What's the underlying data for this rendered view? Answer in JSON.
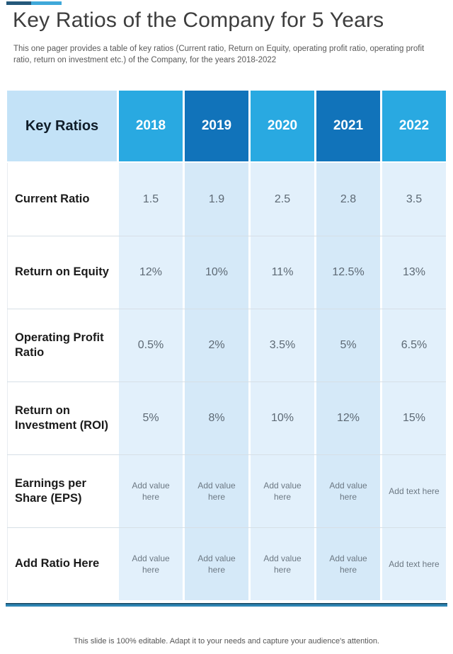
{
  "slide": {
    "title": "Key Ratios of the Company for 5 Years",
    "subtitle": "This one pager provides a table of key ratios (Current ratio, Return on Equity, operating profit ratio, operating profit ratio, return on investment etc.) of the Company, for the years 2018-2022",
    "footer_note": "This slide is 100% editable. Adapt it to your needs and capture your audience's attention."
  },
  "table": {
    "corner_label": "Key Ratios",
    "years": [
      "2018",
      "2019",
      "2020",
      "2021",
      "2022"
    ],
    "rows": [
      {
        "label": "Current Ratio",
        "values": [
          "1.5",
          "1.9",
          "2.5",
          "2.8",
          "3.5"
        ]
      },
      {
        "label": "Return on Equity",
        "values": [
          "12%",
          "10%",
          "11%",
          "12.5%",
          "13%"
        ]
      },
      {
        "label": "Operating Profit Ratio",
        "values": [
          "0.5%",
          "2%",
          "3.5%",
          "5%",
          "6.5%"
        ]
      },
      {
        "label": "Return on Investment (ROI)",
        "values": [
          "5%",
          "8%",
          "10%",
          "12%",
          "15%"
        ]
      },
      {
        "label": "Earnings per Share (EPS)",
        "values": [
          "Add value here",
          "Add value here",
          "Add value here",
          "Add value here",
          "Add text here"
        ]
      },
      {
        "label": "Add Ratio Here",
        "values": [
          "Add value here",
          "Add value here",
          "Add value here",
          "Add value here",
          "Add text here"
        ]
      }
    ]
  },
  "colors": {
    "year_header_bright": "#29a9e1",
    "year_header_dark": "#1173ba",
    "corner_header_bg": "#c3e2f7",
    "body_cell_light": "#e2f0fb",
    "body_cell_shaded": "#d5e9f8",
    "accent_bar_dark": "#24587a",
    "accent_bar_light": "#3fa8d9",
    "bottom_rule": "#2e85b4"
  }
}
